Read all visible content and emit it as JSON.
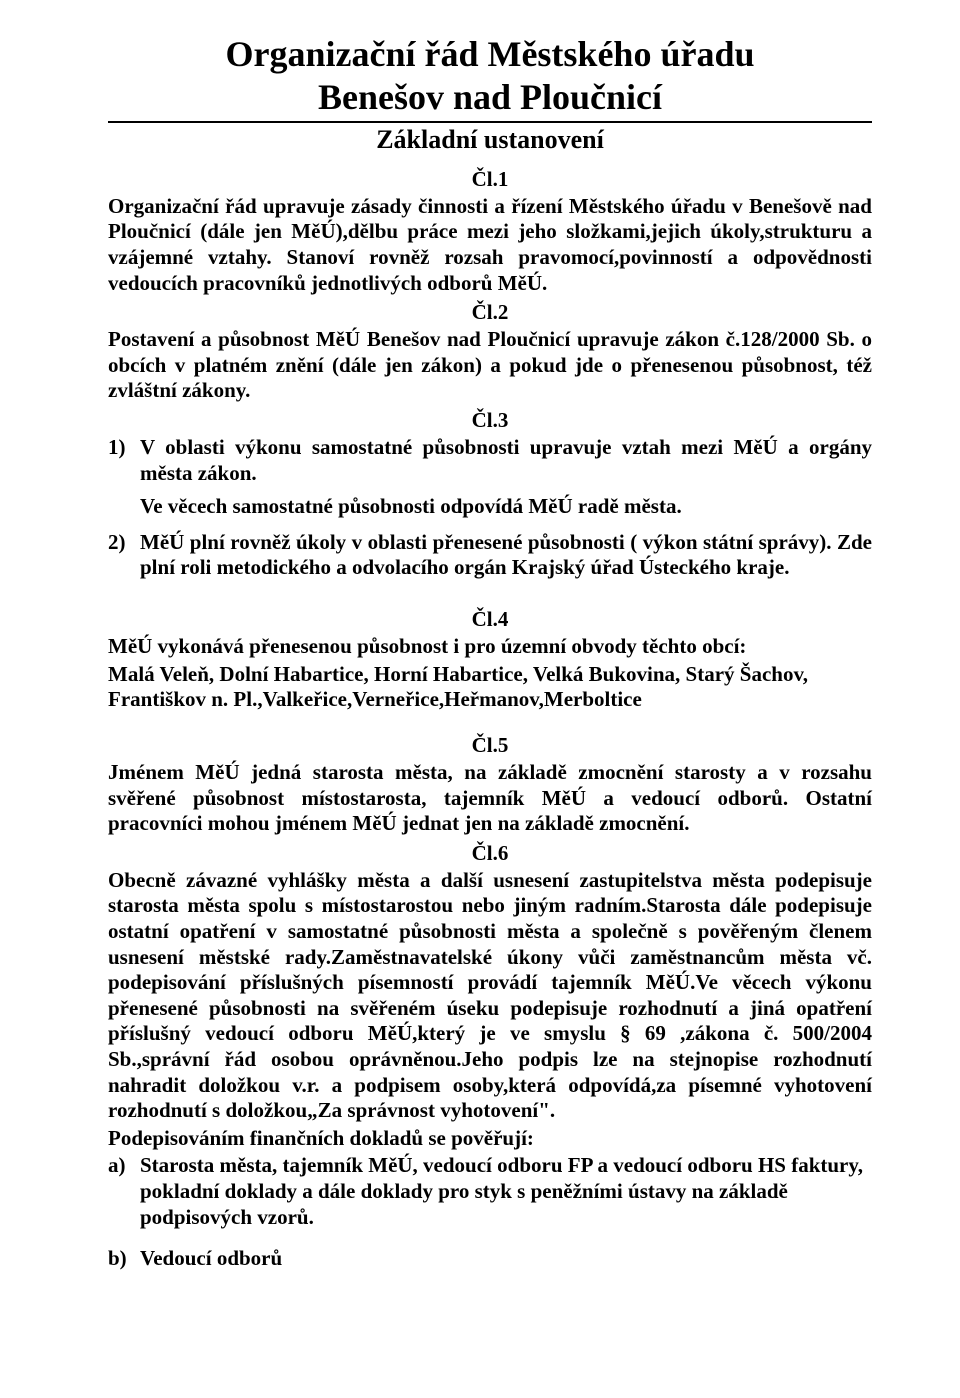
{
  "title_line1": "Organizační řád Městského úřadu",
  "title_line2": "Benešov nad Ploučnicí",
  "subtitle": "Základní ustanovení",
  "articles": {
    "cl1": {
      "heading": "Čl.1",
      "text": "Organizační řád upravuje zásady činnosti a řízení Městského úřadu v Benešově nad Ploučnicí (dále jen MěÚ),dělbu práce mezi jeho složkami,jejich úkoly,strukturu a vzájemné vztahy. Stanoví rovněž rozsah pravomocí,povinností a odpovědnosti vedoucích pracovníků jednotlivých odborů MěÚ."
    },
    "cl2": {
      "heading": "Čl.2",
      "text": "Postavení a působnost MěÚ Benešov nad Ploučnicí upravuje zákon č.128/2000 Sb. o obcích v platném znění (dále jen zákon) a pokud jde o přenesenou působnost, též zvláštní zákony."
    },
    "cl3": {
      "heading": "Čl.3",
      "items": [
        {
          "num": "1)",
          "text": "V oblasti výkonu samostatné působnosti upravuje vztah mezi MěÚ a orgány města zákon.",
          "subline": "Ve věcech samostatné působnosti odpovídá MěÚ radě města."
        },
        {
          "num": "2)",
          "text": "MěÚ plní rovněž úkoly v oblasti přenesené působnosti ( výkon státní správy). Zde plní roli metodického a odvolacího orgán Krajský úřad Ústeckého kraje."
        }
      ]
    },
    "cl4": {
      "heading": "Čl.4",
      "text1": "MěÚ vykonává přenesenou působnost  i pro územní obvody těchto obcí:",
      "text2": " Malá Veleň, Dolní Habartice, Horní Habartice, Velká Bukovina, Starý Šachov, Františkov n. Pl.,Valkeřice,Verneřice,Heřmanov,Merboltice"
    },
    "cl5": {
      "heading": "Čl.5",
      "text": "Jménem MěÚ jedná starosta města, na základě zmocnění starosty a v rozsahu svěřené působnost místostarosta, tajemník MěÚ a vedoucí odborů. Ostatní pracovníci mohou jménem MěÚ jednat jen na základě zmocnění."
    },
    "cl6": {
      "heading": "Čl.6",
      "text1": "Obecně závazné vyhlášky města a další usnesení zastupitelstva města podepisuje starosta města spolu s místostarostou nebo jiným radním.Starosta dále podepisuje ostatní opatření v samostatné působnosti města a společně s pověřeným členem usnesení městské rady.Zaměstnavatelské úkony vůči zaměstnancům města vč. podepisování příslušných písemností provádí tajemník MěÚ.Ve věcech výkonu přenesené působnosti na svěřeném úseku podepisuje rozhodnutí a jiná opatření příslušný vedoucí odboru MěÚ,který je ve smyslu § 69 ,zákona č. 500/2004 Sb.,správní řád osobou oprávněnou.Jeho podpis lze na stejnopise rozhodnutí nahradit doložkou v.r. a podpisem osoby,která odpovídá,za písemné vyhotovení rozhodnutí s doložkou„Za správnost vyhotovení\".",
      "text2": "Podepisováním finančních dokladů se pověřují:",
      "items": [
        {
          "num": "a)",
          "text": "Starosta města, tajemník MěÚ, vedoucí odboru FP a vedoucí odboru HS faktury, pokladní doklady a dále doklady pro styk s peněžními ústavy na základě podpisových vzorů."
        },
        {
          "num": "b)",
          "text": "Vedoucí odborů"
        }
      ]
    }
  }
}
